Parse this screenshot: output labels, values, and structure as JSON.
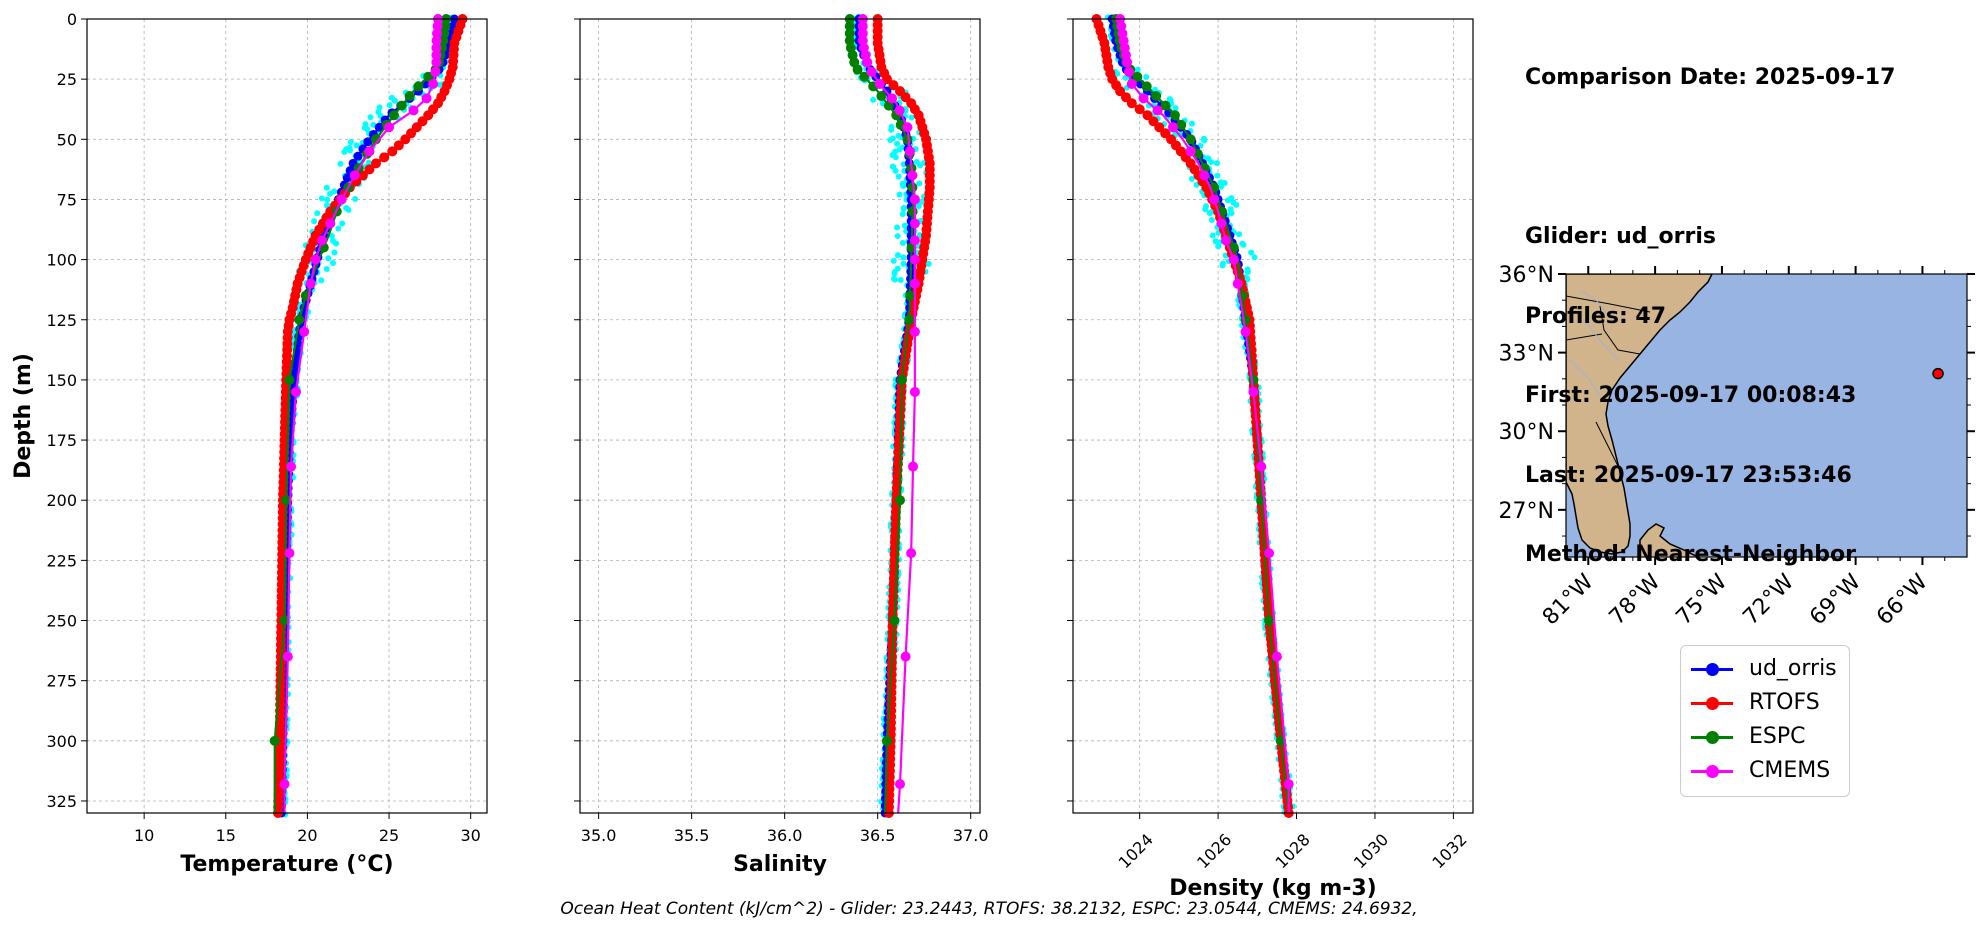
{
  "chart_data": [
    {
      "type": "line",
      "panel": "temperature",
      "xlabel": "Temperature (°C)",
      "ylabel": "Depth (m)",
      "xlim": [
        6.5,
        31
      ],
      "ylim": [
        330,
        0
      ],
      "xticks": [
        "10",
        "15",
        "20",
        "25",
        "30"
      ],
      "yticks": [
        "0",
        "25",
        "50",
        "75",
        "100",
        "125",
        "150",
        "175",
        "200",
        "225",
        "250",
        "275",
        "300",
        "325"
      ],
      "grid": true,
      "series": [
        {
          "name": "ud_orris",
          "color": "#0000ff",
          "depth": [
            0,
            10,
            20,
            30,
            40,
            50,
            60,
            70,
            80,
            90,
            100,
            110,
            120,
            130,
            150,
            175,
            200,
            250,
            300,
            330
          ],
          "values": [
            29.0,
            28.7,
            28.2,
            26.8,
            25.0,
            23.8,
            22.8,
            22.2,
            21.6,
            21.0,
            20.6,
            20.2,
            19.8,
            19.5,
            19.2,
            18.9,
            18.8,
            18.6,
            18.5,
            18.4
          ]
        },
        {
          "name": "RTOFS",
          "color": "#ff0000",
          "depth": [
            0,
            10,
            20,
            25,
            30,
            35,
            40,
            45,
            50,
            55,
            60,
            65,
            70,
            75,
            80,
            90,
            100,
            110,
            120,
            125,
            130,
            150,
            175,
            200,
            250,
            300,
            330
          ],
          "values": [
            29.5,
            29.0,
            28.9,
            28.7,
            28.4,
            28.0,
            27.4,
            26.7,
            26.0,
            25.2,
            24.2,
            23.4,
            22.6,
            22.0,
            21.4,
            20.5,
            19.9,
            19.4,
            19.1,
            18.9,
            18.8,
            18.7,
            18.6,
            18.5,
            18.4,
            18.3,
            18.2
          ]
        },
        {
          "name": "ESPC",
          "color": "#008000",
          "depth": [
            0,
            10,
            20,
            30,
            40,
            50,
            60,
            70,
            80,
            90,
            100,
            115,
            125,
            150,
            200,
            250,
            300,
            330
          ],
          "values": [
            28.5,
            28.3,
            28.0,
            26.5,
            25.3,
            24.2,
            23.3,
            22.5,
            21.8,
            21.3,
            20.7,
            19.9,
            19.5,
            18.9,
            18.7,
            18.6,
            18.0,
            18.0
          ]
        },
        {
          "name": "CMEMS",
          "color": "#ff00ff",
          "depth": [
            0,
            10,
            20,
            27,
            33,
            38,
            45,
            55,
            65,
            75,
            85,
            92,
            100,
            110,
            130,
            155,
            186,
            222,
            265,
            318,
            330
          ],
          "values": [
            28.0,
            27.9,
            27.9,
            27.7,
            27.3,
            26.5,
            25.0,
            23.8,
            22.9,
            22.1,
            21.4,
            20.9,
            20.5,
            20.2,
            19.8,
            19.3,
            19.0,
            18.9,
            18.8,
            18.6,
            18.6
          ]
        }
      ]
    },
    {
      "type": "line",
      "panel": "salinity",
      "xlabel": "Salinity",
      "xlim": [
        34.9,
        37.05
      ],
      "ylim": [
        330,
        0
      ],
      "xticks": [
        "35.0",
        "35.5",
        "36.0",
        "36.5",
        "37.0"
      ],
      "grid": true,
      "series": [
        {
          "name": "ud_orris",
          "color": "#0000ff",
          "depth": [
            0,
            10,
            20,
            30,
            40,
            50,
            60,
            75,
            90,
            100,
            125,
            150,
            200,
            250,
            300,
            330
          ],
          "values": [
            36.4,
            36.4,
            36.45,
            36.55,
            36.62,
            36.66,
            36.67,
            36.68,
            36.68,
            36.68,
            36.67,
            36.62,
            36.6,
            36.58,
            36.55,
            36.54
          ]
        },
        {
          "name": "RTOFS",
          "color": "#ff0000",
          "depth": [
            0,
            10,
            20,
            25,
            30,
            35,
            40,
            50,
            60,
            70,
            80,
            90,
            100,
            110,
            125,
            150,
            200,
            250,
            300,
            330
          ],
          "values": [
            36.5,
            36.5,
            36.52,
            36.55,
            36.62,
            36.68,
            36.72,
            36.76,
            36.78,
            36.78,
            36.77,
            36.76,
            36.74,
            36.72,
            36.68,
            36.63,
            36.6,
            36.58,
            36.57,
            36.56
          ]
        },
        {
          "name": "ESPC",
          "color": "#008000",
          "depth": [
            0,
            10,
            20,
            30,
            40,
            50,
            60,
            75,
            100,
            125,
            150,
            200,
            250,
            300,
            330
          ],
          "values": [
            36.35,
            36.35,
            36.38,
            36.5,
            36.6,
            36.66,
            36.68,
            36.69,
            36.68,
            36.67,
            36.63,
            36.62,
            36.59,
            36.55,
            36.54
          ]
        },
        {
          "name": "CMEMS",
          "color": "#ff00ff",
          "depth": [
            0,
            10,
            20,
            28,
            35,
            45,
            60,
            75,
            100,
            130,
            155,
            186,
            222,
            265,
            318,
            330
          ],
          "values": [
            36.42,
            36.42,
            36.45,
            36.52,
            36.6,
            36.66,
            36.68,
            36.7,
            36.7,
            36.7,
            36.7,
            36.69,
            36.68,
            36.65,
            36.62,
            36.61
          ]
        }
      ]
    },
    {
      "type": "line",
      "panel": "density",
      "xlabel": "Density (kg m-3)",
      "xlim": [
        1022.3,
        1032.5
      ],
      "ylim": [
        330,
        0
      ],
      "xticks": [
        "1024",
        "1026",
        "1028",
        "1030",
        "1032"
      ],
      "grid": true,
      "series": [
        {
          "name": "ud_orris",
          "color": "#0000ff",
          "depth": [
            0,
            10,
            20,
            30,
            40,
            50,
            60,
            70,
            80,
            90,
            100,
            125,
            150,
            200,
            250,
            300,
            330
          ],
          "values": [
            1023.3,
            1023.4,
            1023.6,
            1024.2,
            1024.8,
            1025.3,
            1025.6,
            1025.9,
            1026.1,
            1026.3,
            1026.5,
            1026.7,
            1026.9,
            1027.1,
            1027.3,
            1027.6,
            1027.8
          ]
        },
        {
          "name": "RTOFS",
          "color": "#ff0000",
          "depth": [
            0,
            10,
            20,
            25,
            30,
            35,
            40,
            50,
            60,
            70,
            80,
            90,
            100,
            110,
            125,
            150,
            200,
            250,
            300,
            330
          ],
          "values": [
            1022.9,
            1023.1,
            1023.2,
            1023.3,
            1023.5,
            1023.8,
            1024.2,
            1024.8,
            1025.3,
            1025.7,
            1026.0,
            1026.2,
            1026.4,
            1026.6,
            1026.8,
            1026.9,
            1027.1,
            1027.3,
            1027.6,
            1027.8
          ]
        },
        {
          "name": "ESPC",
          "color": "#008000",
          "depth": [
            0,
            10,
            20,
            30,
            40,
            50,
            60,
            70,
            80,
            90,
            100,
            125,
            150,
            200,
            250,
            300,
            330
          ],
          "values": [
            1023.4,
            1023.5,
            1023.7,
            1024.3,
            1024.9,
            1025.3,
            1025.6,
            1025.9,
            1026.1,
            1026.3,
            1026.5,
            1026.7,
            1026.9,
            1027.1,
            1027.3,
            1027.6,
            1027.8
          ]
        },
        {
          "name": "CMEMS",
          "color": "#ff00ff",
          "depth": [
            0,
            10,
            20,
            27,
            33,
            40,
            50,
            60,
            70,
            80,
            92,
            100,
            110,
            130,
            155,
            186,
            222,
            265,
            318,
            330
          ],
          "values": [
            1023.5,
            1023.6,
            1023.7,
            1023.8,
            1024.1,
            1024.6,
            1025.1,
            1025.5,
            1025.8,
            1026.0,
            1026.2,
            1026.4,
            1026.5,
            1026.7,
            1026.9,
            1027.1,
            1027.3,
            1027.5,
            1027.8,
            1027.8
          ]
        }
      ]
    }
  ],
  "info": {
    "comparison_date": "Comparison Date: 2025-09-17",
    "glider": "Glider: ud_orris",
    "profiles": "Profiles: 47",
    "first": "First: 2025-09-17 00:08:43",
    "last": "Last: 2025-09-17 23:53:46",
    "method": "Method: Nearest-Neighbor"
  },
  "map": {
    "lat_ticks": [
      "36°N",
      "33°N",
      "30°N",
      "27°N"
    ],
    "lon_ticks": [
      "81°W",
      "78°W",
      "75°W",
      "72°W",
      "69°W",
      "66°W"
    ],
    "extent": {
      "lon_min": -82.0,
      "lon_max": -64.0,
      "lat_min": 25.2,
      "lat_max": 36.0
    },
    "glider_position": {
      "lon": -65.3,
      "lat": 32.2
    },
    "land_color": "#d2b48c",
    "ocean_color": "#98b4e2"
  },
  "legend": [
    {
      "label": "ud_orris",
      "color": "#0000ff"
    },
    {
      "label": "RTOFS",
      "color": "#ff0000"
    },
    {
      "label": "ESPC",
      "color": "#008000"
    },
    {
      "label": "CMEMS",
      "color": "#ff00ff"
    }
  ],
  "ohc_text": "Ocean Heat Content (kJ/cm^2) - Glider: 23.2443,  RTOFS: 38.2132,  ESPC: 23.0544,  CMEMS: 24.6932,",
  "observation_color": "#00ffff"
}
